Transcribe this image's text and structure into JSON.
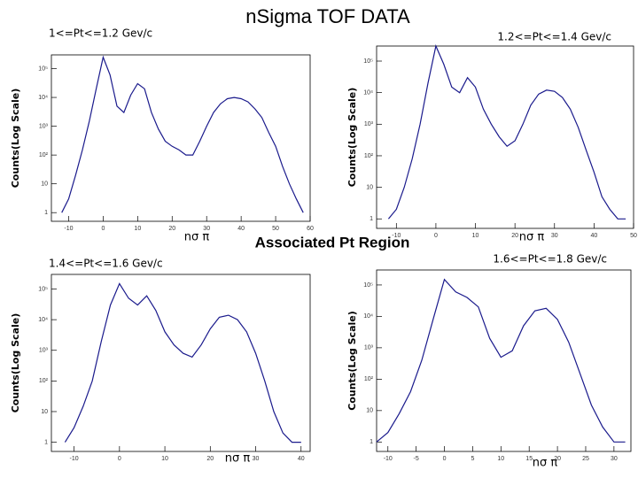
{
  "title": "nSigma TOF DATA",
  "caption": "Associated Pt Region",
  "chart_data": [
    {
      "type": "line",
      "title": "1<=Pt<=1.2 Gev/c",
      "x_label": "nσ π",
      "y_label": "Counts(Log Scale)",
      "log_y": true,
      "color": "#1a1a8c",
      "xlim": [
        -15,
        60
      ],
      "xticks": [
        -10,
        0,
        10,
        20,
        30,
        40,
        50,
        60
      ],
      "ylim": [
        0.5,
        300000
      ],
      "yticks": [
        1,
        10,
        {
          "value": 100,
          "label": "10²"
        },
        {
          "value": 1000,
          "label": "10³"
        },
        {
          "value": 10000,
          "label": "10⁴"
        },
        {
          "value": 100000,
          "label": "10⁵"
        }
      ],
      "x": [
        -12,
        -10,
        -8,
        -6,
        -4,
        -2,
        0,
        2,
        4,
        6,
        8,
        10,
        12,
        14,
        16,
        18,
        20,
        22,
        24,
        26,
        28,
        30,
        32,
        34,
        36,
        38,
        40,
        42,
        44,
        46,
        48,
        50,
        52,
        54,
        56,
        58
      ],
      "values": [
        1,
        3,
        20,
        150,
        1500,
        20000,
        250000,
        60000,
        5000,
        3000,
        12000,
        30000,
        20000,
        3000,
        800,
        300,
        200,
        150,
        100,
        100,
        300,
        1000,
        3000,
        6000,
        9000,
        10000,
        9000,
        7000,
        4000,
        2000,
        600,
        200,
        40,
        10,
        3,
        1
      ]
    },
    {
      "type": "line",
      "title": "1.2<=Pt<=1.4 Gev/c",
      "x_label": "nσ π",
      "y_label": "Counts(Log Scale)",
      "log_y": true,
      "color": "#1a1a8c",
      "xlim": [
        -15,
        50
      ],
      "xticks": [
        -10,
        0,
        10,
        20,
        30,
        40,
        50
      ],
      "ylim": [
        0.5,
        300000
      ],
      "yticks": [
        1,
        10,
        {
          "value": 100,
          "label": "10²"
        },
        {
          "value": 1000,
          "label": "10³"
        },
        {
          "value": 10000,
          "label": "10⁴"
        },
        {
          "value": 100000,
          "label": "10⁵"
        }
      ],
      "x": [
        -12,
        -10,
        -8,
        -6,
        -4,
        -2,
        0,
        2,
        4,
        6,
        8,
        10,
        12,
        14,
        16,
        18,
        20,
        22,
        24,
        26,
        28,
        30,
        32,
        34,
        36,
        38,
        40,
        42,
        44,
        46,
        48
      ],
      "values": [
        1,
        2,
        10,
        80,
        1000,
        20000,
        300000,
        80000,
        15000,
        10000,
        30000,
        15000,
        3000,
        1000,
        400,
        200,
        300,
        1000,
        4000,
        9000,
        12000,
        11000,
        7000,
        3000,
        800,
        150,
        30,
        5,
        2,
        1,
        1
      ]
    },
    {
      "type": "line",
      "title": "1.4<=Pt<=1.6 Gev/c",
      "x_label": "nσ π",
      "y_label": "Counts(Log Scale)",
      "log_y": true,
      "color": "#1a1a8c",
      "xlim": [
        -15,
        42
      ],
      "xticks": [
        -10,
        0,
        10,
        20,
        30,
        40
      ],
      "ylim": [
        0.5,
        300000
      ],
      "yticks": [
        1,
        10,
        {
          "value": 100,
          "label": "10²"
        },
        {
          "value": 1000,
          "label": "10³"
        },
        {
          "value": 10000,
          "label": "10⁴"
        },
        {
          "value": 100000,
          "label": "10⁵"
        }
      ],
      "x": [
        -12,
        -10,
        -8,
        -6,
        -4,
        -2,
        0,
        2,
        4,
        6,
        8,
        10,
        12,
        14,
        16,
        18,
        20,
        22,
        24,
        26,
        28,
        30,
        32,
        34,
        36,
        38,
        40
      ],
      "values": [
        1,
        3,
        15,
        100,
        2000,
        30000,
        150000,
        50000,
        30000,
        60000,
        20000,
        4000,
        1500,
        800,
        600,
        1500,
        5000,
        12000,
        14000,
        10000,
        4000,
        800,
        100,
        10,
        2,
        1,
        1
      ]
    },
    {
      "type": "line",
      "title": "1.6<=Pt<=1.8 Gev/c",
      "x_label": "nσ π",
      "y_label": "Counts(Log Scale)",
      "log_y": true,
      "color": "#1a1a8c",
      "xlim": [
        -12,
        33
      ],
      "xticks": [
        -10,
        -5,
        0,
        5,
        10,
        15,
        20,
        25,
        30
      ],
      "ylim": [
        0.5,
        300000
      ],
      "yticks": [
        1,
        10,
        {
          "value": 100,
          "label": "10²"
        },
        {
          "value": 1000,
          "label": "10³"
        },
        {
          "value": 10000,
          "label": "10⁴"
        },
        {
          "value": 100000,
          "label": "10⁵"
        }
      ],
      "x": [
        -12,
        -10,
        -8,
        -6,
        -4,
        -2,
        0,
        2,
        4,
        6,
        8,
        10,
        12,
        14,
        16,
        18,
        20,
        22,
        24,
        26,
        28,
        30,
        32
      ],
      "values": [
        1,
        2,
        8,
        40,
        400,
        8000,
        150000,
        60000,
        40000,
        20000,
        2000,
        500,
        800,
        5000,
        15000,
        18000,
        8000,
        1500,
        150,
        15,
        3,
        1,
        1
      ]
    }
  ]
}
